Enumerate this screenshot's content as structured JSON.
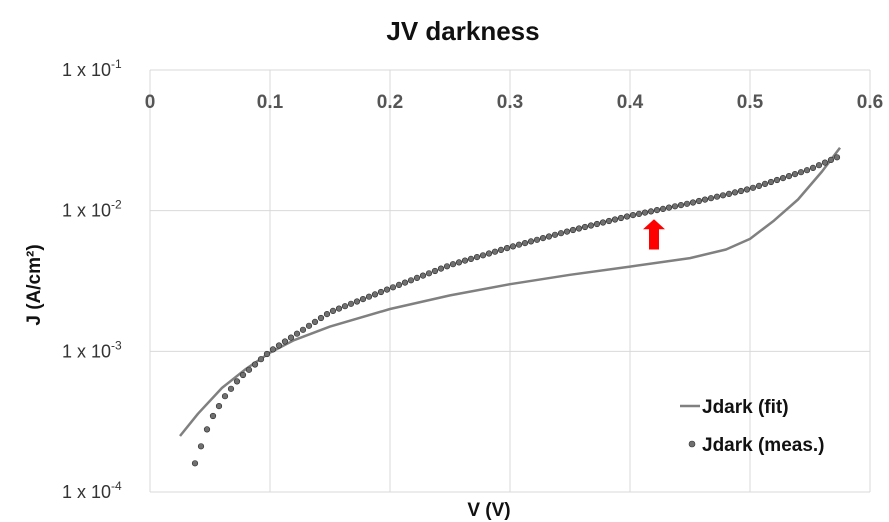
{
  "chart_data": {
    "type": "scatter",
    "title": "JV darkness",
    "xlabel": "V (V)",
    "ylabel": "J (A/cm²)",
    "xlim": [
      0,
      0.6
    ],
    "ylim": [
      0.0001,
      0.1
    ],
    "y_scale": "log",
    "x_ticks": [
      "0",
      "0.1",
      "0.2",
      "0.3",
      "0.4",
      "0.5",
      "0.6"
    ],
    "x_tick_values": [
      0,
      0.1,
      0.2,
      0.3,
      0.4,
      0.5,
      0.6
    ],
    "x_axis_position": "top",
    "y_ticks": [
      {
        "mantissa": "1 x 10",
        "exponent": "-1",
        "value": 0.1
      },
      {
        "mantissa": "1 x 10",
        "exponent": "-2",
        "value": 0.01
      },
      {
        "mantissa": "1 x 10",
        "exponent": "-3",
        "value": 0.001
      },
      {
        "mantissa": "1 x 10",
        "exponent": "-4",
        "value": 0.0001
      }
    ],
    "grid": true,
    "legend_position": "bottom-right",
    "series": [
      {
        "name": "Jdark (fit)",
        "type": "line",
        "color": "#808080",
        "points": [
          {
            "x": 0.025,
            "y": 0.00025
          },
          {
            "x": 0.04,
            "y": 0.00036
          },
          {
            "x": 0.06,
            "y": 0.00055
          },
          {
            "x": 0.08,
            "y": 0.00075
          },
          {
            "x": 0.1,
            "y": 0.00098
          },
          {
            "x": 0.12,
            "y": 0.0012
          },
          {
            "x": 0.15,
            "y": 0.0015
          },
          {
            "x": 0.2,
            "y": 0.002
          },
          {
            "x": 0.25,
            "y": 0.0025
          },
          {
            "x": 0.3,
            "y": 0.003
          },
          {
            "x": 0.35,
            "y": 0.0035
          },
          {
            "x": 0.4,
            "y": 0.004
          },
          {
            "x": 0.45,
            "y": 0.0046
          },
          {
            "x": 0.48,
            "y": 0.0053
          },
          {
            "x": 0.5,
            "y": 0.0063
          },
          {
            "x": 0.52,
            "y": 0.0085
          },
          {
            "x": 0.54,
            "y": 0.012
          },
          {
            "x": 0.56,
            "y": 0.019
          },
          {
            "x": 0.575,
            "y": 0.028
          }
        ]
      },
      {
        "name": "Jdark (meas.)",
        "type": "scatter",
        "color": "#707070",
        "x_start": 0.0375,
        "x_step": 0.005,
        "count": 108,
        "anchors": [
          {
            "x": 0.0375,
            "y": 0.00016
          },
          {
            "x": 0.05,
            "y": 0.00032
          },
          {
            "x": 0.0625,
            "y": 0.00048
          },
          {
            "x": 0.075,
            "y": 0.00065
          },
          {
            "x": 0.1,
            "y": 0.001
          },
          {
            "x": 0.15,
            "y": 0.0019
          },
          {
            "x": 0.2,
            "y": 0.0028
          },
          {
            "x": 0.25,
            "y": 0.0041
          },
          {
            "x": 0.3,
            "y": 0.0055
          },
          {
            "x": 0.35,
            "y": 0.0072
          },
          {
            "x": 0.4,
            "y": 0.0092
          },
          {
            "x": 0.45,
            "y": 0.0113
          },
          {
            "x": 0.5,
            "y": 0.0143
          },
          {
            "x": 0.55,
            "y": 0.0197
          },
          {
            "x": 0.575,
            "y": 0.0245
          }
        ]
      }
    ],
    "annotation": {
      "type": "up-arrow",
      "x": 0.42,
      "y_from": 0.0053,
      "y_to": 0.0087,
      "color": "#ff0000"
    }
  }
}
